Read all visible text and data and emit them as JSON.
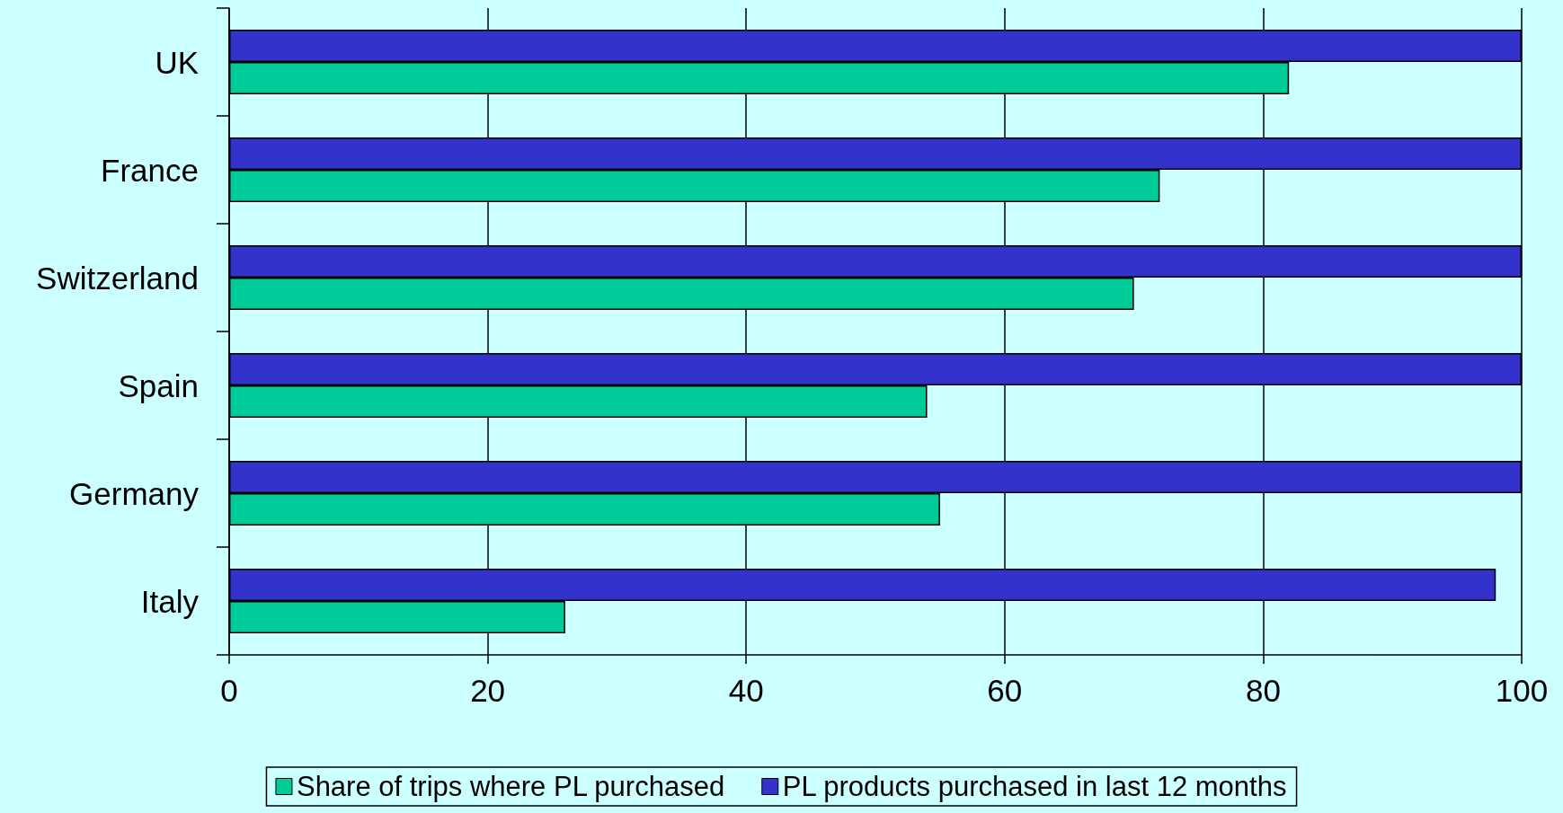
{
  "chart_data": {
    "type": "bar",
    "orientation": "horizontal",
    "categories": [
      "UK",
      "France",
      "Switzerland",
      "Spain",
      "Germany",
      "Italy"
    ],
    "series": [
      {
        "name": "Share of trips where PL purchased",
        "color": "#00cc99",
        "values": [
          82,
          72,
          70,
          54,
          55,
          26
        ]
      },
      {
        "name": "PL products purchased in last 12 months",
        "color": "#3333cc",
        "values": [
          100,
          100,
          100,
          100,
          100,
          98
        ]
      }
    ],
    "xlim": [
      0,
      100
    ],
    "xticks": [
      0,
      20,
      40,
      60,
      80,
      100
    ],
    "grid": "x",
    "legend": "bottom"
  }
}
